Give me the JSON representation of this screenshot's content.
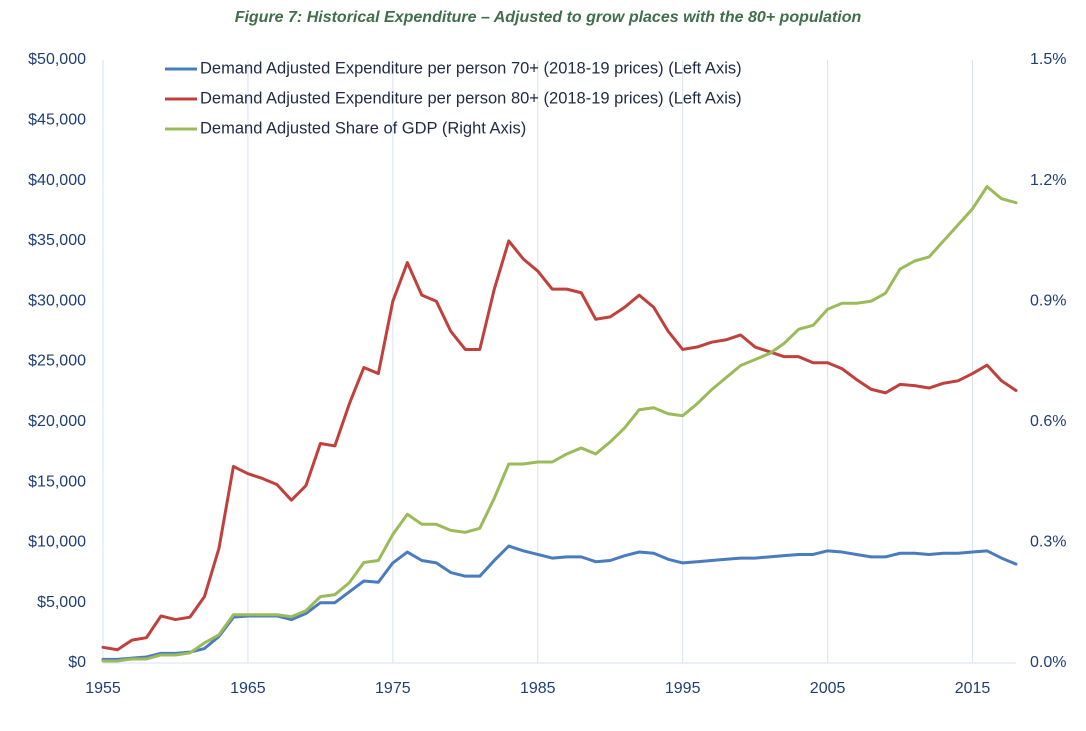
{
  "chart_data": {
    "type": "line",
    "title": "Figure 7: Historical Expenditure – Adjusted to grow places with the 80+ population",
    "x": [
      1955,
      1956,
      1957,
      1958,
      1959,
      1960,
      1961,
      1962,
      1963,
      1964,
      1965,
      1966,
      1967,
      1968,
      1969,
      1970,
      1971,
      1972,
      1973,
      1974,
      1975,
      1976,
      1977,
      1978,
      1979,
      1980,
      1981,
      1982,
      1983,
      1984,
      1985,
      1986,
      1987,
      1988,
      1989,
      1990,
      1991,
      1992,
      1993,
      1994,
      1995,
      1996,
      1997,
      1998,
      1999,
      2000,
      2001,
      2002,
      2003,
      2004,
      2005,
      2006,
      2007,
      2008,
      2009,
      2010,
      2011,
      2012,
      2013,
      2014,
      2015,
      2016,
      2017,
      2018
    ],
    "series": [
      {
        "name": "Demand Adjusted Expenditure per person 70+ (2018-19 prices) (Left Axis)",
        "color": "#4a7bbf",
        "values": [
          300,
          300,
          400,
          500,
          800,
          800,
          900,
          1200,
          2200,
          3800,
          3900,
          3900,
          3900,
          3600,
          4100,
          5000,
          5000,
          5900,
          6800,
          6700,
          8300,
          9200,
          8500,
          8300,
          7500,
          7200,
          7200,
          8500,
          9700,
          9300,
          9000,
          8700,
          8800,
          8800,
          8400,
          8500,
          8900,
          9200,
          9100,
          8600,
          8300,
          8400,
          8500,
          8600,
          8700,
          8700,
          8800,
          8900,
          9000,
          9000,
          9300,
          9200,
          9000,
          8800,
          8800,
          9100,
          9100,
          9000,
          9100,
          9100,
          9200,
          9300,
          8700,
          8200
        ]
      },
      {
        "name": "Demand Adjusted  Expenditure per person 80+ (2018-19 prices) (Left Axis)",
        "color": "#c0403c",
        "values": [
          1300,
          1100,
          1900,
          2100,
          3900,
          3600,
          3800,
          5500,
          9500,
          16300,
          15700,
          15300,
          14800,
          13500,
          14700,
          18200,
          18000,
          21500,
          24500,
          24000,
          30000,
          33200,
          30500,
          30000,
          27500,
          26000,
          26000,
          31000,
          35000,
          33500,
          32500,
          31000,
          31000,
          30700,
          28500,
          28700,
          29500,
          30500,
          29500,
          27500,
          26000,
          26200,
          26600,
          26800,
          27200,
          26200,
          25800,
          25400,
          25400,
          24900,
          24900,
          24400,
          23500,
          22700,
          22400,
          23100,
          23000,
          22800,
          23200,
          23400,
          24000,
          24700,
          23400,
          22600
        ]
      },
      {
        "name": "Demand Adjusted Share of GDP (Right Axis)",
        "color": "#9bbb59",
        "axis": "y2",
        "values": [
          0.005,
          0.005,
          0.01,
          0.01,
          0.02,
          0.02,
          0.025,
          0.05,
          0.07,
          0.12,
          0.12,
          0.12,
          0.12,
          0.115,
          0.13,
          0.165,
          0.17,
          0.2,
          0.25,
          0.255,
          0.32,
          0.37,
          0.345,
          0.345,
          0.33,
          0.325,
          0.335,
          0.41,
          0.495,
          0.495,
          0.5,
          0.5,
          0.52,
          0.535,
          0.52,
          0.55,
          0.585,
          0.63,
          0.635,
          0.62,
          0.615,
          0.645,
          0.68,
          0.71,
          0.74,
          0.755,
          0.77,
          0.795,
          0.83,
          0.84,
          0.88,
          0.895,
          0.895,
          0.9,
          0.92,
          0.98,
          1.0,
          1.01,
          1.05,
          1.09,
          1.13,
          1.185,
          1.155,
          1.145
        ]
      }
    ],
    "xlim": [
      1955,
      2018
    ],
    "xticks": [
      1955,
      1965,
      1975,
      1985,
      1995,
      2005,
      2015
    ],
    "ylim": [
      0,
      50000
    ],
    "yticks": [
      {
        "value": 0,
        "label": "$0"
      },
      {
        "value": 5000,
        "label": "$5,000"
      },
      {
        "value": 10000,
        "label": "$10,000"
      },
      {
        "value": 15000,
        "label": "$15,000"
      },
      {
        "value": 20000,
        "label": "$20,000"
      },
      {
        "value": 25000,
        "label": "$25,000"
      },
      {
        "value": 30000,
        "label": "$30,000"
      },
      {
        "value": 35000,
        "label": "$35,000"
      },
      {
        "value": 40000,
        "label": "$40,000"
      },
      {
        "value": 45000,
        "label": "$45,000"
      },
      {
        "value": 50000,
        "label": "$50,000"
      }
    ],
    "y2lim": [
      0,
      1.5
    ],
    "y2ticks": [
      {
        "value": 0,
        "label": "0.0%"
      },
      {
        "value": 0.3,
        "label": "0.3%"
      },
      {
        "value": 0.6,
        "label": "0.6%"
      },
      {
        "value": 0.9,
        "label": "0.9%"
      },
      {
        "value": 1.2,
        "label": "1.2%"
      },
      {
        "value": 1.5,
        "label": "1.5%"
      }
    ],
    "grid": "x"
  }
}
